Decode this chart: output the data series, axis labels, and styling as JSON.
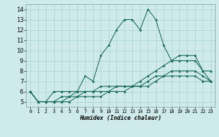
{
  "xlabel": "Humidex (Indice chaleur)",
  "bg_color": "#ceeaea",
  "grid_color": "#afd4d4",
  "line_color": "#1a6b5a",
  "xlim": [
    -0.5,
    23.5
  ],
  "ylim": [
    4.5,
    14.5
  ],
  "xticks": [
    0,
    1,
    2,
    3,
    4,
    5,
    6,
    7,
    8,
    9,
    10,
    11,
    12,
    13,
    14,
    15,
    16,
    17,
    18,
    19,
    20,
    21,
    22,
    23
  ],
  "yticks": [
    5,
    6,
    7,
    8,
    9,
    10,
    11,
    12,
    13,
    14
  ],
  "series": [
    [
      6.0,
      5.0,
      5.0,
      6.0,
      6.0,
      6.0,
      6.0,
      7.5,
      7.0,
      9.5,
      10.5,
      12.0,
      13.0,
      13.0,
      12.0,
      14.0,
      13.0,
      10.5,
      9.0,
      9.5,
      9.5,
      9.5,
      8.0,
      8.0
    ],
    [
      6.0,
      5.0,
      5.0,
      5.0,
      5.5,
      5.5,
      6.0,
      6.0,
      6.0,
      6.5,
      6.5,
      6.5,
      6.5,
      6.5,
      7.0,
      7.5,
      8.0,
      8.5,
      9.0,
      9.0,
      9.0,
      9.0,
      8.0,
      7.0
    ],
    [
      6.0,
      5.0,
      5.0,
      5.0,
      5.0,
      5.5,
      5.5,
      6.0,
      6.0,
      6.0,
      6.0,
      6.5,
      6.5,
      6.5,
      6.5,
      7.0,
      7.5,
      7.5,
      8.0,
      8.0,
      8.0,
      8.0,
      7.5,
      7.0
    ],
    [
      6.0,
      5.0,
      5.0,
      5.0,
      5.0,
      5.0,
      5.5,
      5.5,
      5.5,
      5.5,
      6.0,
      6.0,
      6.0,
      6.5,
      6.5,
      6.5,
      7.0,
      7.5,
      7.5,
      7.5,
      7.5,
      7.5,
      7.0,
      7.0
    ]
  ]
}
